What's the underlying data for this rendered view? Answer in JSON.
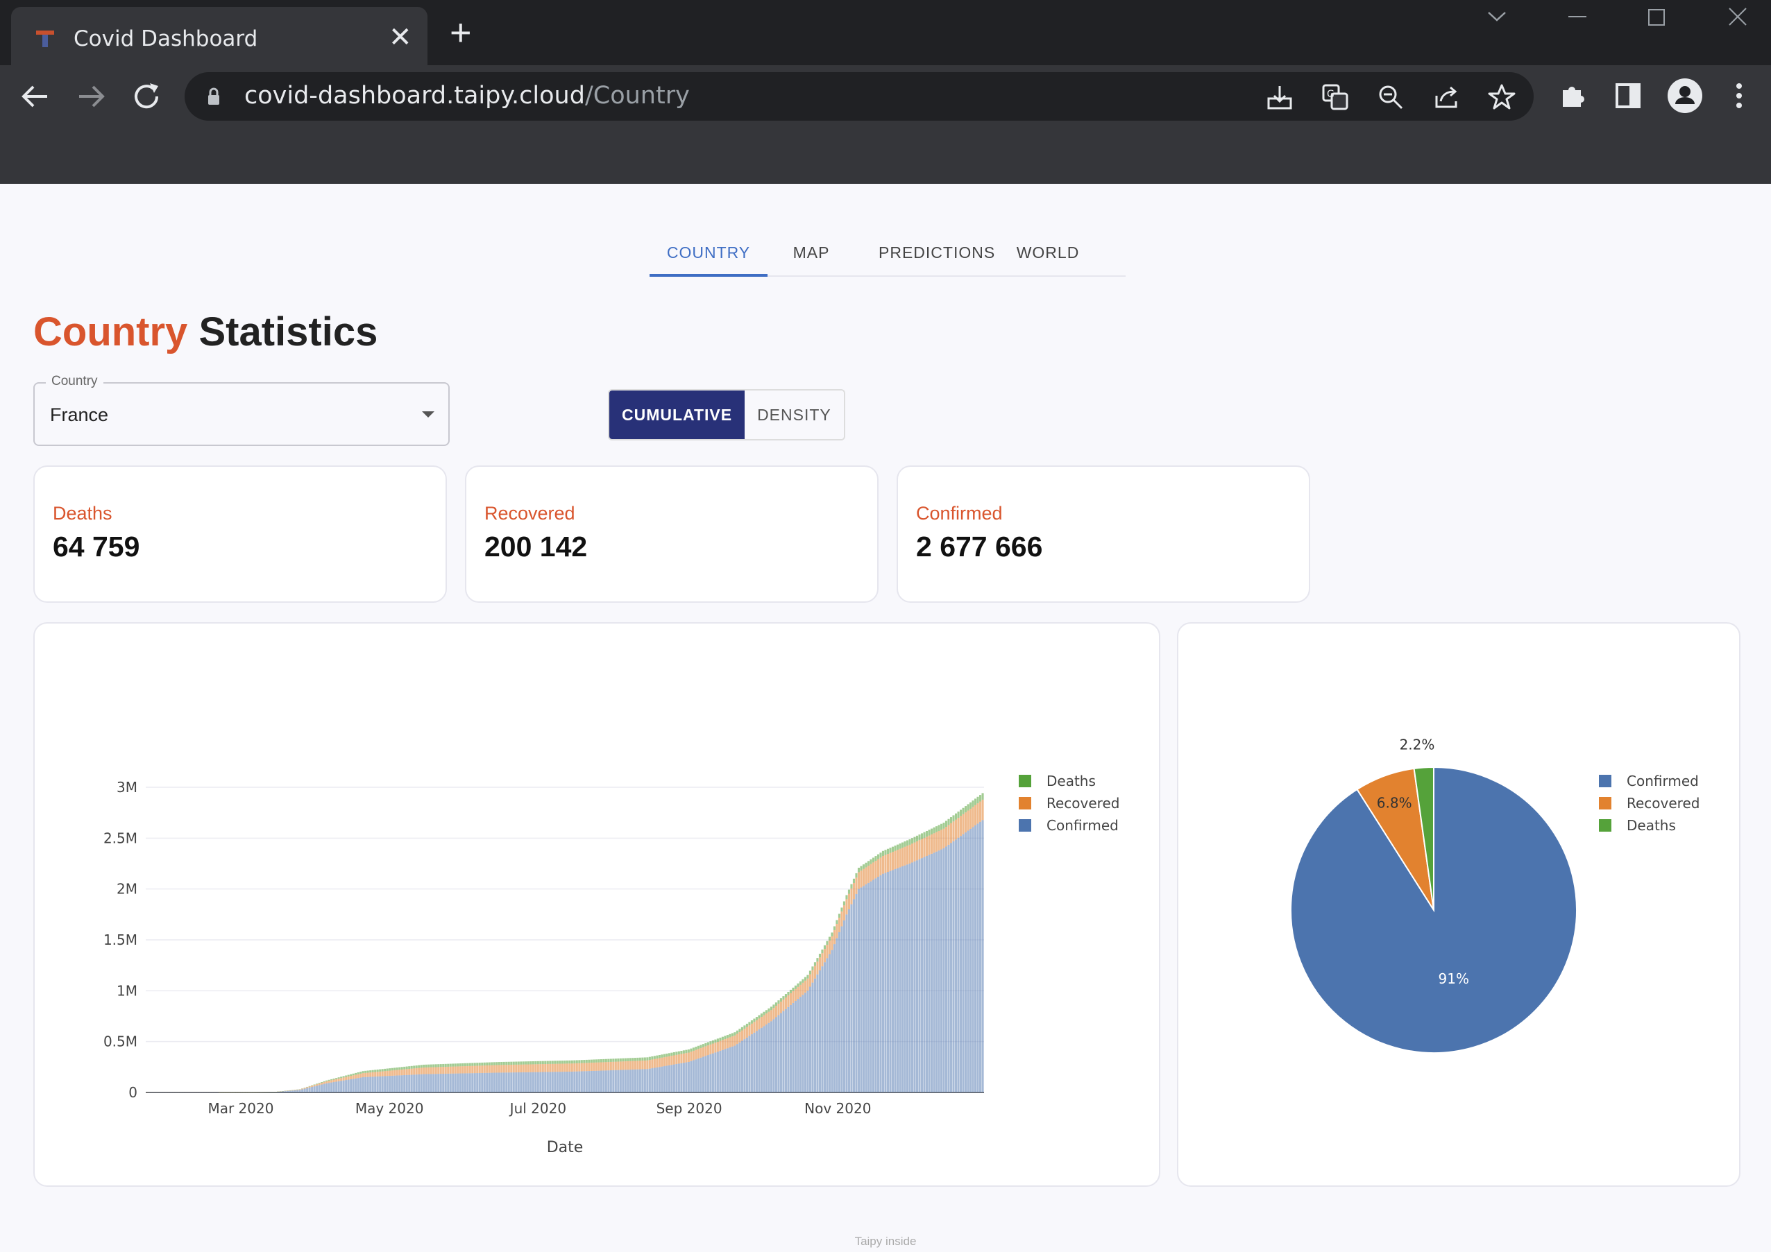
{
  "browser": {
    "tab_title": "Covid Dashboard",
    "url_host": "covid-dashboard.taipy.cloud",
    "url_path": "/Country"
  },
  "nav": {
    "tabs": [
      {
        "label": "COUNTRY",
        "active": true
      },
      {
        "label": "MAP",
        "active": false
      },
      {
        "label": "PREDICTIONS",
        "active": false
      },
      {
        "label": "WORLD",
        "active": false
      }
    ]
  },
  "heading": {
    "accent": "Country",
    "rest": "Statistics"
  },
  "country_select": {
    "label": "Country",
    "value": "France"
  },
  "toggle": {
    "options": [
      "CUMULATIVE",
      "DENSITY"
    ],
    "selected": "CUMULATIVE"
  },
  "stats": [
    {
      "label": "Deaths",
      "value": "64 759"
    },
    {
      "label": "Recovered",
      "value": "200 142"
    },
    {
      "label": "Confirmed",
      "value": "2 677 666"
    }
  ],
  "colors": {
    "accent": "#d9552d",
    "tab_active": "#3f6ec4",
    "toggle_on": "#283178",
    "confirmed": "#4c74ae",
    "recovered": "#e2822f",
    "deaths": "#55a23a"
  },
  "chart_data": [
    {
      "type": "bar",
      "stacked": true,
      "xlabel": "Date",
      "ylabel": "",
      "ylim": [
        0,
        3000000
      ],
      "yticks": [
        {
          "value": 0,
          "label": "0"
        },
        {
          "value": 500000,
          "label": "0.5M"
        },
        {
          "value": 1000000,
          "label": "1M"
        },
        {
          "value": 1500000,
          "label": "1.5M"
        },
        {
          "value": 2000000,
          "label": "2M"
        },
        {
          "value": 2500000,
          "label": "2.5M"
        },
        {
          "value": 3000000,
          "label": "3M"
        }
      ],
      "xrange": [
        "2020-01-22",
        "2020-12-31"
      ],
      "xticks": [
        {
          "date": "2020-03-01",
          "label": "Mar 2020"
        },
        {
          "date": "2020-05-01",
          "label": "May 2020"
        },
        {
          "date": "2020-07-01",
          "label": "Jul 2020"
        },
        {
          "date": "2020-09-01",
          "label": "Sep 2020"
        },
        {
          "date": "2020-11-01",
          "label": "Nov 2020"
        }
      ],
      "legend": [
        "Deaths",
        "Recovered",
        "Confirmed"
      ],
      "legend_position": "top-right",
      "x": [
        "2020-02-20",
        "2020-03-15",
        "2020-03-25",
        "2020-04-05",
        "2020-04-20",
        "2020-05-15",
        "2020-06-15",
        "2020-07-15",
        "2020-08-15",
        "2020-09-01",
        "2020-09-20",
        "2020-10-05",
        "2020-10-20",
        "2020-10-30",
        "2020-11-05",
        "2020-11-10",
        "2020-11-20",
        "2020-12-01",
        "2020-12-15",
        "2020-12-31"
      ],
      "series": [
        {
          "name": "Confirmed",
          "values": [
            100,
            5000,
            25000,
            90000,
            150000,
            180000,
            195000,
            205000,
            230000,
            300000,
            460000,
            700000,
            1000000,
            1400000,
            1750000,
            2000000,
            2150000,
            2250000,
            2400000,
            2677666
          ]
        },
        {
          "name": "Recovered",
          "values": [
            0,
            1000,
            5000,
            20000,
            40000,
            65000,
            75000,
            80000,
            85000,
            92000,
            100000,
            110000,
            120000,
            135000,
            150000,
            165000,
            175000,
            185000,
            193000,
            200142
          ]
        },
        {
          "name": "Deaths",
          "values": [
            0,
            100,
            1300,
            8000,
            20000,
            28000,
            29500,
            30200,
            30500,
            31000,
            32000,
            33000,
            35000,
            37000,
            40000,
            44000,
            49000,
            54000,
            59000,
            64759
          ]
        }
      ]
    },
    {
      "type": "pie",
      "slices": [
        {
          "name": "Confirmed",
          "value": 2677666,
          "label": "91%"
        },
        {
          "name": "Recovered",
          "value": 200142,
          "label": "6.8%"
        },
        {
          "name": "Deaths",
          "value": 64759,
          "label": "2.2%"
        }
      ],
      "legend_position": "top-right"
    }
  ],
  "footer": "Taipy inside"
}
